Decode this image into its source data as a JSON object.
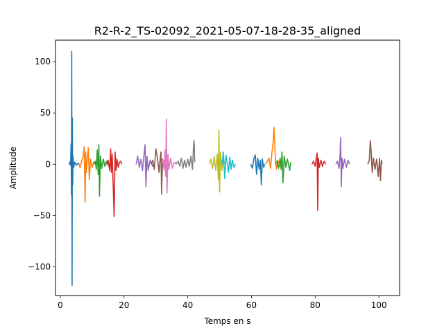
{
  "chart_data": {
    "type": "line",
    "title": "R2-R-2_TS-02092_2021-05-07-18-28-35_aligned",
    "xlabel": "Temps en s",
    "ylabel": "Amplitude",
    "xlim": [
      -1.5,
      106.5
    ],
    "ylim": [
      -128,
      121
    ],
    "xticks": [
      0,
      20,
      40,
      60,
      80,
      100
    ],
    "yticks": [
      -100,
      -50,
      0,
      50,
      100
    ],
    "xtick_labels": [
      "0",
      "20",
      "40",
      "60",
      "80",
      "100"
    ],
    "ytick_labels": [
      "−100",
      "−50",
      "0",
      "50",
      "100"
    ],
    "grid": false,
    "legend": "none",
    "series_colors": [
      "#1f77b4",
      "#ff7f0e",
      "#2ca02c",
      "#d62728",
      "#9467bd",
      "#8c564b",
      "#e377c2",
      "#7f7f7f",
      "#bcbd22",
      "#17becf"
    ],
    "series": [
      {
        "x": [
          2.7,
          3.0,
          3.2,
          3.4,
          3.5,
          3.6,
          3.7,
          3.8,
          3.9,
          4.0,
          4.2,
          4.5,
          5.0,
          5.5,
          6.0
        ],
        "y": [
          0,
          2,
          -1,
          20,
          -30,
          110,
          -118,
          45,
          -20,
          8,
          -3,
          2,
          -1,
          1,
          0
        ]
      },
      {
        "x": [
          5.8,
          6.2,
          6.8,
          7.2,
          7.5,
          7.8,
          8.0,
          8.2,
          8.5,
          8.8,
          9.1,
          9.5,
          10.0,
          10.5,
          11.0
        ],
        "y": [
          0,
          -3,
          4,
          8,
          17,
          -37,
          12,
          -8,
          5,
          16,
          -15,
          5,
          -3,
          2,
          0
        ]
      },
      {
        "x": [
          10.5,
          11.0,
          11.3,
          11.6,
          11.9,
          12.1,
          12.3,
          12.6,
          13.0,
          13.5,
          14.0,
          14.5,
          15.0,
          15.5
        ],
        "y": [
          0,
          3,
          -5,
          14,
          -10,
          19,
          -31,
          8,
          -4,
          5,
          -2,
          3,
          -1,
          0
        ]
      },
      {
        "x": [
          14.5,
          15.0,
          15.5,
          15.8,
          16.0,
          16.3,
          16.6,
          16.9,
          17.2,
          17.5,
          17.8,
          18.2,
          18.6,
          19.0,
          19.3
        ],
        "y": [
          0,
          4,
          -6,
          15,
          -8,
          10,
          -20,
          -51,
          12,
          -6,
          5,
          -3,
          2,
          3,
          0
        ]
      },
      {
        "x": [
          23.8,
          24.3,
          24.8,
          25.3,
          25.8,
          26.3,
          26.6,
          26.9,
          27.2,
          27.6,
          28.2,
          29.0,
          29.5
        ],
        "y": [
          0,
          8,
          -3,
          5,
          -6,
          10,
          19,
          -22,
          8,
          -6,
          4,
          -2,
          0
        ]
      },
      {
        "x": [
          28.5,
          29.0,
          29.5,
          30.0,
          30.5,
          31.0,
          31.3,
          31.6,
          31.8,
          32.1,
          32.5,
          33.0
        ],
        "y": [
          0,
          4,
          -5,
          15,
          6,
          -8,
          3,
          12,
          -29,
          5,
          -3,
          0
        ]
      },
      {
        "x": [
          31.8,
          32.3,
          32.6,
          32.9,
          33.1,
          33.3,
          33.5,
          33.8,
          34.1,
          34.6,
          35.2,
          35.8,
          36.3
        ],
        "y": [
          0,
          4,
          -6,
          14,
          -12,
          44,
          -28,
          10,
          -5,
          6,
          -4,
          2,
          0
        ]
      },
      {
        "x": [
          36.3,
          37.0,
          37.5,
          38.0,
          38.5,
          39.0,
          39.5,
          40.0,
          40.5,
          41.0,
          41.5,
          41.8,
          42.0,
          42.2
        ],
        "y": [
          0,
          3,
          -2,
          6,
          -4,
          4,
          -3,
          5,
          -2,
          8,
          -5,
          18,
          23,
          2
        ]
      },
      {
        "x": [
          46.8,
          47.3,
          47.8,
          48.3,
          48.8,
          49.3,
          49.6,
          49.8,
          50.0,
          50.3,
          50.7,
          51.2,
          51.8
        ],
        "y": [
          0,
          5,
          -4,
          7,
          -6,
          10,
          -15,
          33,
          -27,
          12,
          -6,
          4,
          0
        ]
      },
      {
        "x": [
          50.8,
          51.2,
          51.6,
          52.0,
          52.4,
          52.8,
          53.2,
          53.6,
          54.0,
          54.5,
          55.0
        ],
        "y": [
          0,
          12,
          -14,
          9,
          1,
          -8,
          7,
          -5,
          4,
          -3,
          0
        ]
      },
      {
        "x": [
          59.8,
          60.3,
          60.8,
          61.2,
          61.6,
          62.0,
          62.4,
          62.8,
          63.1,
          63.4,
          63.8,
          64.2
        ],
        "y": [
          0,
          -4,
          6,
          9,
          -10,
          6,
          -5,
          4,
          -20,
          5,
          -3,
          0
        ]
      },
      {
        "x": [
          64.5,
          65.0,
          65.5,
          66.0,
          66.4,
          66.8,
          67.1,
          67.4,
          67.8,
          68.3,
          68.8,
          69.3
        ],
        "y": [
          0,
          3,
          6,
          -4,
          10,
          22,
          36,
          12,
          -5,
          4,
          -2,
          0
        ]
      },
      {
        "x": [
          67.5,
          68.0,
          68.5,
          69.0,
          69.3,
          69.6,
          69.9,
          70.3,
          70.8,
          71.3,
          72.0,
          72.3
        ],
        "y": [
          0,
          3,
          -4,
          6,
          -5,
          12,
          -18,
          8,
          -3,
          5,
          -6,
          2
        ]
      },
      {
        "x": [
          79.0,
          79.5,
          80.0,
          80.3,
          80.6,
          80.8,
          81.0,
          81.3,
          81.8,
          82.3,
          82.8,
          83.3
        ],
        "y": [
          0,
          3,
          -2,
          5,
          11,
          -45,
          6,
          -3,
          4,
          -2,
          3,
          0
        ]
      },
      {
        "x": [
          86.5,
          87.0,
          87.5,
          87.8,
          88.0,
          88.2,
          88.4,
          88.7,
          89.2,
          89.8,
          90.3,
          90.8
        ],
        "y": [
          0,
          3,
          -4,
          8,
          26,
          -22,
          6,
          -4,
          5,
          -3,
          4,
          0
        ]
      },
      {
        "x": [
          96.5,
          97.0,
          97.3,
          97.6,
          97.9,
          98.3,
          98.8,
          99.3,
          99.8,
          100.2,
          100.5,
          100.8,
          101.0
        ],
        "y": [
          0,
          4,
          23,
          12,
          -8,
          6,
          -5,
          5,
          -12,
          6,
          -16,
          4,
          0
        ]
      }
    ]
  }
}
